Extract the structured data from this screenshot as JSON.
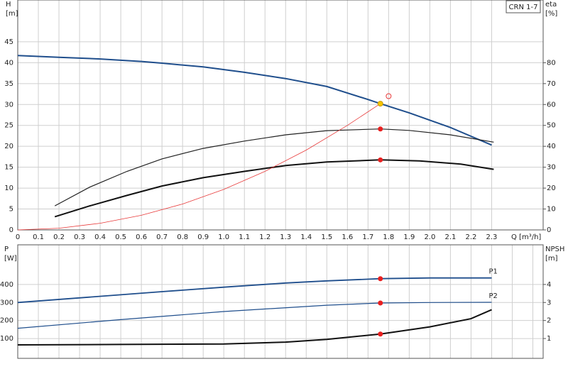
{
  "chart_data": [
    {
      "type": "line",
      "title": "CRN 1-7",
      "xlabel": "Q [m³/h]",
      "ylabel": [
        "H",
        "[m]"
      ],
      "y2label": [
        "eta",
        "[%]"
      ],
      "xlim": [
        0,
        2.55
      ],
      "xticks": [
        0,
        0.1,
        0.2,
        0.3,
        0.4,
        0.5,
        0.6,
        0.7,
        0.8,
        0.9,
        {
          "value": 1,
          "label": "1.0"
        },
        1.1,
        1.2,
        1.3,
        1.4,
        1.5,
        1.6,
        1.7,
        1.8,
        1.9,
        {
          "value": 2,
          "label": "2.0"
        },
        2.1,
        2.2,
        2.3
      ],
      "ylim": [
        0,
        55
      ],
      "yticks": [
        0,
        5,
        10,
        15,
        20,
        25,
        30,
        35,
        40,
        45
      ],
      "y2lim": [
        0,
        110
      ],
      "y2ticks": [
        0,
        10,
        20,
        30,
        40,
        50,
        60,
        70,
        80
      ],
      "grid": true,
      "series": [
        {
          "color": "#1f4e8c",
          "width": 2,
          "x": [
            0,
            0.2,
            0.4,
            0.6,
            0.7,
            0.9,
            1.1,
            1.3,
            1.5,
            1.7,
            1.76,
            1.9,
            2.1,
            2.3
          ],
          "values": [
            41.7,
            41.3,
            40.9,
            40.3,
            39.9,
            39,
            37.7,
            36.2,
            34.3,
            31.2,
            30.2,
            28,
            24.5,
            20.3
          ]
        },
        {
          "color": "#222222",
          "width": 1.2,
          "axis": "y2",
          "x": [
            0.18,
            0.35,
            0.53,
            0.7,
            0.9,
            1.1,
            1.3,
            1.5,
            1.76,
            1.9,
            2.1,
            2.31
          ],
          "values": [
            11.5,
            20.5,
            28,
            34,
            39,
            42.5,
            45.5,
            47.5,
            48.3,
            47.6,
            45.5,
            42
          ]
        },
        {
          "color": "#111111",
          "width": 2,
          "axis": "y2",
          "x": [
            0.18,
            0.35,
            0.53,
            0.7,
            0.9,
            1.1,
            1.3,
            1.5,
            1.76,
            1.95,
            2.15,
            2.31
          ],
          "values": [
            6.3,
            11.5,
            16.5,
            21,
            25,
            28,
            30.8,
            32.5,
            33.5,
            33,
            31.5,
            29
          ]
        },
        {
          "color": "#e83a3a",
          "width": 0.8,
          "x": [
            0,
            0.2,
            0.4,
            0.6,
            0.8,
            1.0,
            1.2,
            1.4,
            1.6,
            1.76
          ],
          "values": [
            0,
            0.4,
            1.6,
            3.5,
            6.2,
            9.7,
            14,
            19.1,
            25,
            30.2
          ]
        },
        {
          "color": "#f5c400",
          "marker": "dot",
          "x": [
            1.76
          ],
          "values": [
            30.2
          ]
        },
        {
          "color": "#e83a3a",
          "marker": "open",
          "x": [
            1.8
          ],
          "values": [
            32
          ]
        },
        {
          "color": "#e82020",
          "marker": "dot",
          "axis": "y2",
          "x": [
            1.76,
            1.76
          ],
          "values": [
            48.3,
            33.5
          ]
        }
      ]
    },
    {
      "type": "line",
      "ylabel": [
        "P",
        "[W]"
      ],
      "y2label": [
        "NPSH",
        "[m]"
      ],
      "xlim": [
        0,
        2.55
      ],
      "xgrid": [
        0,
        0.1,
        0.2,
        0.3,
        0.4,
        0.5,
        0.6,
        0.7,
        0.8,
        0.9,
        1,
        1.1,
        1.2,
        1.3,
        1.4,
        1.5,
        1.6,
        1.7,
        1.8,
        1.9,
        2,
        2.1,
        2.2,
        2.3,
        2.4,
        2.5
      ],
      "ylim": [
        -10,
        620
      ],
      "yticks": [
        100,
        200,
        300,
        400
      ],
      "y2lim": [
        -0.1,
        6.2
      ],
      "y2ticks": [
        1,
        2,
        3,
        4
      ],
      "grid": true,
      "series": [
        {
          "name": "P1",
          "color": "#1f4e8c",
          "width": 1.8,
          "x": [
            0,
            0.7,
            1.0,
            1.3,
            1.5,
            1.76,
            2.0,
            2.3
          ],
          "values": [
            300,
            360,
            385,
            408,
            420,
            432,
            436,
            436
          ]
        },
        {
          "name": "P2",
          "color": "#1f4e8c",
          "width": 1.2,
          "x": [
            0,
            0.5,
            1.0,
            1.5,
            1.76,
            2.0,
            2.3
          ],
          "values": [
            157,
            205,
            250,
            285,
            297,
            300,
            301
          ]
        },
        {
          "color": "#111111",
          "width": 2,
          "axis": "y2",
          "x": [
            0,
            0.5,
            1.0,
            1.3,
            1.5,
            1.76,
            2.0,
            2.2,
            2.3
          ],
          "values": [
            0.65,
            0.67,
            0.7,
            0.8,
            0.95,
            1.25,
            1.65,
            2.1,
            2.6
          ]
        },
        {
          "color": "#e82020",
          "marker": "dot",
          "x": [
            1.76,
            1.76
          ],
          "values": [
            432,
            297
          ]
        },
        {
          "color": "#e82020",
          "marker": "dot",
          "axis": "y2",
          "x": [
            1.76
          ],
          "values": [
            1.25
          ]
        }
      ]
    }
  ]
}
